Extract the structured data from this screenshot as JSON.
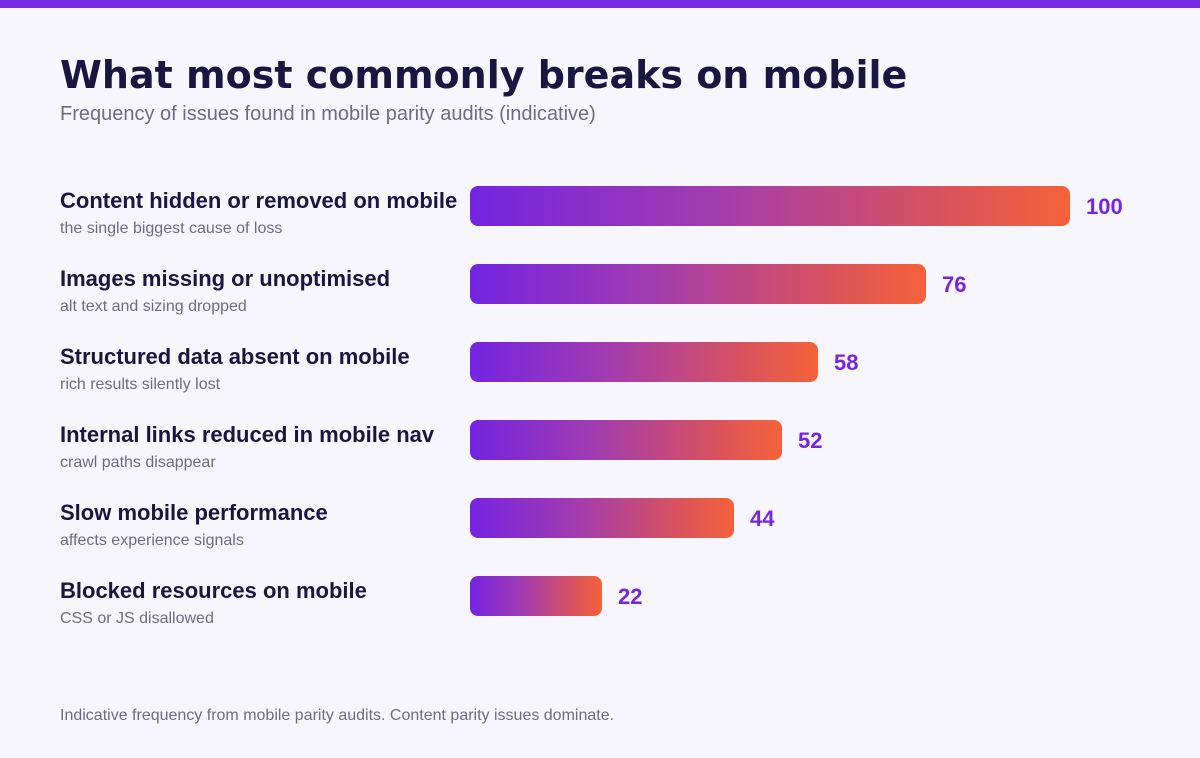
{
  "header": {
    "title": "What most commonly breaks on mobile",
    "subtitle": "Frequency of issues found in mobile parity audits (indicative)"
  },
  "footer": {
    "note": "Indicative frequency from mobile parity audits. Content parity issues dominate."
  },
  "colors": {
    "accent": "#7b2be0",
    "bar_start": "#7424e2",
    "bar_end": "#f5623a",
    "value_text": "#7424e2",
    "title_text": "#1a1640",
    "muted_text": "#6e6c80",
    "background": "#f7f6fc"
  },
  "chart_data": {
    "type": "bar",
    "orientation": "horizontal",
    "title": "What most commonly breaks on mobile",
    "subtitle": "Frequency of issues found in mobile parity audits (indicative)",
    "xlim": [
      0,
      100
    ],
    "grid": false,
    "legend": "none",
    "categories": [
      "Content hidden or removed on mobile",
      "Images missing or unoptimised",
      "Structured data absent on mobile",
      "Internal links reduced in mobile nav",
      "Slow mobile performance",
      "Blocked resources on mobile"
    ],
    "descriptions": [
      "the single biggest cause of loss",
      "alt text and sizing dropped",
      "rich results silently lost",
      "crawl paths disappear",
      "affects experience signals",
      "CSS or JS disallowed"
    ],
    "values": [
      100,
      76,
      58,
      52,
      44,
      22
    ]
  }
}
